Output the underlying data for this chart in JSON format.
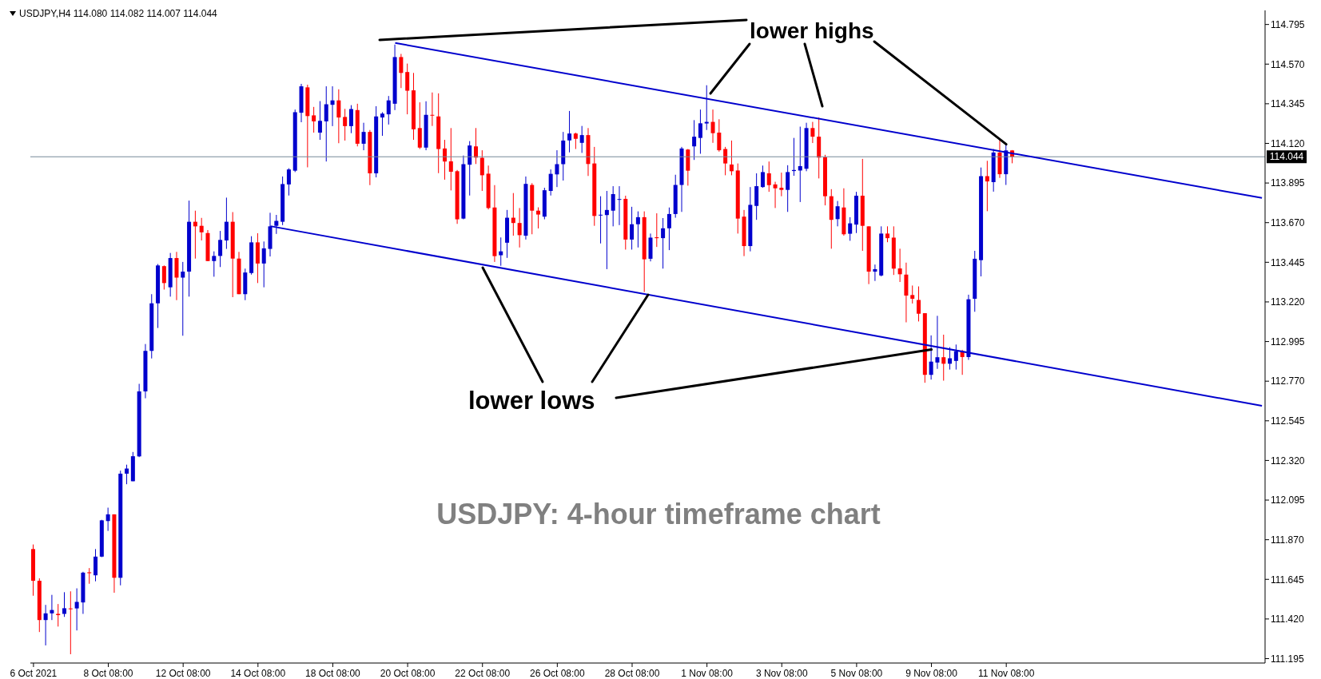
{
  "chart_data": {
    "type": "candlestick",
    "title": "USDJPY,H4  114.080 114.082 114.007 114.044",
    "categories": [
      "6 Oct 2021",
      null,
      null,
      null,
      null,
      null,
      null,
      null,
      null,
      null,
      null,
      null,
      "8 Oct 08:00",
      null,
      null,
      null,
      null,
      null,
      null,
      null,
      null,
      null,
      null,
      null,
      "12 Oct 08:00",
      null,
      null,
      null,
      null,
      null,
      null,
      null,
      null,
      null,
      null,
      null,
      "14 Oct 08:00",
      null,
      null,
      null,
      null,
      null,
      null,
      null,
      null,
      null,
      null,
      null,
      "18 Oct 08:00",
      null,
      null,
      null,
      null,
      null,
      null,
      null,
      null,
      null,
      null,
      null,
      "20 Oct 08:00",
      null,
      null,
      null,
      null,
      null,
      null,
      null,
      null,
      null,
      null,
      null,
      "22 Oct 08:00",
      null,
      null,
      null,
      null,
      null,
      null,
      null,
      null,
      null,
      null,
      null,
      "26 Oct 08:00",
      null,
      null,
      null,
      null,
      null,
      null,
      null,
      null,
      null,
      null,
      null,
      "28 Oct 08:00",
      null,
      null,
      null,
      null,
      null,
      null,
      null,
      null,
      null,
      null,
      null,
      "1 Nov 08:00",
      null,
      null,
      null,
      null,
      null,
      null,
      null,
      null,
      null,
      null,
      null,
      "3 Nov 08:00",
      null,
      null,
      null,
      null,
      null,
      null,
      null,
      null,
      null,
      null,
      null,
      "5 Nov 08:00",
      null,
      null,
      null,
      null,
      null,
      null,
      null,
      null,
      null,
      null,
      null,
      "9 Nov 08:00",
      null,
      null,
      null,
      null,
      null,
      null,
      null,
      null,
      null,
      null,
      null,
      "11 Nov 08:00",
      null,
      null,
      null,
      null,
      null,
      null,
      null,
      null,
      null,
      null,
      null,
      null,
      null,
      null,
      null,
      null,
      null,
      null,
      null,
      null,
      null,
      null,
      null,
      null,
      null,
      null,
      null,
      null,
      null,
      null,
      null,
      null,
      null,
      null,
      null,
      null,
      null,
      null,
      null,
      null,
      null
    ],
    "ohlc": [
      [
        111.817,
        111.843,
        111.552,
        111.637
      ],
      [
        111.637,
        111.651,
        111.346,
        111.414
      ],
      [
        111.414,
        111.5,
        111.27,
        111.452
      ],
      [
        111.452,
        111.557,
        111.414,
        111.471
      ],
      [
        111.449,
        111.505,
        111.377,
        111.442
      ],
      [
        111.449,
        111.572,
        111.432,
        111.481
      ],
      [
        111.48,
        111.577,
        111.22,
        111.478
      ],
      [
        111.48,
        111.594,
        111.355,
        111.517
      ],
      [
        111.514,
        111.688,
        111.449,
        111.683
      ],
      [
        111.685,
        111.709,
        111.62,
        111.68
      ],
      [
        111.668,
        111.817,
        111.634,
        111.774
      ],
      [
        111.774,
        111.983,
        111.771,
        111.98
      ],
      [
        111.976,
        112.052,
        111.92,
        112.014
      ],
      [
        112.014,
        112.014,
        111.569,
        111.654
      ],
      [
        111.654,
        112.262,
        111.611,
        112.245
      ],
      [
        112.245,
        112.296,
        112.185,
        112.274
      ],
      [
        112.202,
        112.368,
        112.202,
        112.344
      ],
      [
        112.343,
        112.755,
        112.339,
        112.712
      ],
      [
        112.712,
        112.981,
        112.673,
        112.942
      ],
      [
        112.942,
        113.264,
        112.899,
        113.212
      ],
      [
        113.212,
        113.435,
        113.072,
        113.427
      ],
      [
        113.423,
        113.427,
        113.29,
        113.327
      ],
      [
        113.303,
        113.498,
        113.25,
        113.469
      ],
      [
        113.469,
        113.504,
        113.23,
        113.358
      ],
      [
        113.358,
        113.447,
        113.028,
        113.392
      ],
      [
        113.392,
        113.795,
        113.25,
        113.675
      ],
      [
        113.675,
        113.738,
        113.466,
        113.649
      ],
      [
        113.652,
        113.697,
        113.569,
        113.615
      ],
      [
        113.611,
        113.628,
        113.452,
        113.452
      ],
      [
        113.452,
        113.507,
        113.363,
        113.481
      ],
      [
        113.481,
        113.623,
        113.418,
        113.572
      ],
      [
        113.569,
        113.812,
        113.521,
        113.675
      ],
      [
        113.675,
        113.73,
        113.247,
        113.466
      ],
      [
        113.466,
        113.504,
        113.264,
        113.264
      ],
      [
        113.264,
        113.409,
        113.23,
        113.387
      ],
      [
        113.384,
        113.593,
        113.375,
        113.558
      ],
      [
        113.558,
        113.61,
        113.327,
        113.438
      ],
      [
        113.438,
        113.563,
        113.303,
        113.524
      ],
      [
        113.521,
        113.726,
        113.478,
        113.649
      ],
      [
        113.652,
        113.714,
        113.606,
        113.68
      ],
      [
        113.675,
        113.932,
        113.656,
        113.889
      ],
      [
        113.887,
        113.979,
        113.824,
        113.972
      ],
      [
        113.965,
        114.312,
        113.957,
        114.297
      ],
      [
        114.294,
        114.458,
        114.24,
        114.444
      ],
      [
        114.438,
        114.453,
        113.984,
        114.275
      ],
      [
        114.279,
        114.327,
        114.181,
        114.245
      ],
      [
        114.181,
        114.36,
        114.14,
        114.248
      ],
      [
        114.245,
        114.444,
        114.017,
        114.342
      ],
      [
        114.339,
        114.444,
        114.218,
        114.364
      ],
      [
        114.364,
        114.427,
        114.121,
        114.267
      ],
      [
        114.27,
        114.316,
        114.136,
        114.218
      ],
      [
        114.218,
        114.337,
        114.178,
        114.315
      ],
      [
        114.309,
        114.345,
        114.103,
        114.118
      ],
      [
        114.118,
        114.237,
        114.081,
        114.185
      ],
      [
        114.185,
        114.196,
        113.883,
        113.95
      ],
      [
        113.95,
        114.331,
        113.927,
        114.273
      ],
      [
        114.267,
        114.297,
        114.163,
        114.289
      ],
      [
        114.285,
        114.389,
        114.227,
        114.364
      ],
      [
        114.345,
        114.681,
        114.309,
        114.61
      ],
      [
        114.61,
        114.628,
        114.434,
        114.52
      ],
      [
        114.525,
        114.573,
        114.285,
        114.419
      ],
      [
        114.421,
        114.52,
        114.14,
        114.2
      ],
      [
        114.207,
        114.353,
        114.088,
        114.096
      ],
      [
        114.096,
        114.359,
        114.081,
        114.282
      ],
      [
        114.282,
        114.409,
        114.219,
        114.279
      ],
      [
        114.273,
        114.404,
        113.951,
        114.088
      ],
      [
        114.091,
        114.14,
        113.914,
        114.017
      ],
      [
        114.018,
        114.207,
        113.853,
        113.959
      ],
      [
        113.962,
        113.969,
        113.663,
        113.689
      ],
      [
        113.693,
        114.051,
        113.689,
        114.002
      ],
      [
        113.999,
        114.133,
        113.824,
        114.108
      ],
      [
        114.103,
        114.207,
        114.003,
        114.039
      ],
      [
        114.038,
        114.081,
        113.85,
        113.939
      ],
      [
        113.948,
        113.994,
        113.745,
        113.753
      ],
      [
        113.756,
        113.883,
        113.447,
        113.48
      ],
      [
        113.485,
        113.586,
        113.425,
        113.507
      ],
      [
        113.556,
        113.742,
        113.47,
        113.698
      ],
      [
        113.698,
        113.838,
        113.596,
        113.668
      ],
      [
        113.668,
        113.753,
        113.529,
        113.599
      ],
      [
        113.596,
        113.932,
        113.574,
        113.89
      ],
      [
        113.884,
        113.894,
        113.604,
        113.738
      ],
      [
        113.738,
        113.757,
        113.637,
        113.716
      ],
      [
        113.704,
        113.868,
        113.689,
        113.854
      ],
      [
        113.85,
        113.972,
        113.824,
        113.947
      ],
      [
        113.944,
        114.081,
        113.872,
        114.002
      ],
      [
        114.002,
        114.185,
        113.909,
        114.136
      ],
      [
        114.137,
        114.304,
        114.069,
        114.176
      ],
      [
        114.176,
        114.181,
        114.088,
        114.146
      ],
      [
        114.123,
        114.219,
        114.066,
        114.167
      ],
      [
        114.167,
        114.207,
        113.935,
        114.003
      ],
      [
        114.006,
        114.1,
        113.652,
        113.708
      ],
      [
        113.711,
        113.82,
        113.552,
        113.715
      ],
      [
        113.713,
        113.85,
        113.406,
        113.742
      ],
      [
        113.738,
        113.877,
        113.649,
        113.832
      ],
      [
        113.8,
        113.877,
        113.656,
        113.804
      ],
      [
        113.805,
        113.823,
        113.517,
        113.574
      ],
      [
        113.574,
        113.76,
        113.517,
        113.661
      ],
      [
        113.661,
        113.734,
        113.529,
        113.701
      ],
      [
        113.701,
        113.734,
        113.276,
        113.462
      ],
      [
        113.465,
        113.608,
        113.45,
        113.585
      ],
      [
        113.587,
        113.723,
        113.532,
        113.582
      ],
      [
        113.582,
        113.696,
        113.409,
        113.638
      ],
      [
        113.638,
        113.756,
        113.514,
        113.719
      ],
      [
        113.719,
        113.942,
        113.698,
        113.884
      ],
      [
        113.884,
        114.1,
        113.731,
        114.091
      ],
      [
        114.085,
        114.088,
        113.88,
        113.965
      ],
      [
        114.103,
        114.252,
        114.026,
        114.158
      ],
      [
        114.151,
        114.312,
        114.061,
        114.234
      ],
      [
        114.233,
        114.45,
        114.196,
        114.242
      ],
      [
        114.242,
        114.312,
        114.123,
        114.178
      ],
      [
        114.181,
        114.257,
        114.073,
        114.081
      ],
      [
        114.088,
        114.1,
        113.939,
        114.006
      ],
      [
        114.0,
        114.136,
        113.939,
        113.962
      ],
      [
        113.966,
        114.006,
        113.608,
        113.693
      ],
      [
        113.704,
        113.742,
        113.48,
        113.537
      ],
      [
        113.537,
        113.872,
        113.507,
        113.771
      ],
      [
        113.765,
        113.95,
        113.686,
        113.877
      ],
      [
        113.872,
        113.994,
        113.868,
        113.957
      ],
      [
        113.95,
        114.017,
        113.845,
        113.883
      ],
      [
        113.887,
        113.902,
        113.753,
        113.865
      ],
      [
        113.868,
        113.954,
        113.82,
        113.856
      ],
      [
        113.856,
        113.996,
        113.731,
        113.957
      ],
      [
        113.963,
        114.151,
        113.936,
        113.969
      ],
      [
        113.966,
        114.215,
        113.787,
        113.991
      ],
      [
        113.976,
        114.237,
        113.962,
        114.207
      ],
      [
        114.207,
        114.242,
        114.122,
        114.158
      ],
      [
        114.158,
        114.267,
        113.921,
        114.039
      ],
      [
        114.041,
        114.055,
        113.768,
        113.82
      ],
      [
        113.82,
        113.86,
        113.522,
        113.686
      ],
      [
        113.69,
        113.793,
        113.649,
        113.763
      ],
      [
        113.756,
        113.865,
        113.596,
        113.604
      ],
      [
        113.607,
        113.701,
        113.567,
        113.666
      ],
      [
        113.659,
        113.845,
        113.611,
        113.823
      ],
      [
        113.823,
        114.032,
        113.51,
        113.652
      ],
      [
        113.649,
        113.649,
        113.321,
        113.392
      ],
      [
        113.392,
        113.432,
        113.339,
        113.406
      ],
      [
        113.37,
        113.649,
        113.365,
        113.608
      ],
      [
        113.608,
        113.649,
        113.559,
        113.582
      ],
      [
        113.585,
        113.649,
        113.373,
        113.409
      ],
      [
        113.41,
        113.522,
        113.333,
        113.377
      ],
      [
        113.375,
        113.443,
        113.104,
        113.256
      ],
      [
        113.259,
        113.313,
        113.211,
        113.238
      ],
      [
        113.231,
        113.308,
        113.109,
        113.153
      ],
      [
        113.156,
        113.156,
        112.761,
        112.806
      ],
      [
        112.806,
        113.03,
        112.779,
        112.881
      ],
      [
        112.876,
        113.141,
        112.84,
        112.906
      ],
      [
        112.906,
        113.034,
        112.773,
        112.869
      ],
      [
        112.869,
        112.963,
        112.836,
        112.9
      ],
      [
        112.885,
        112.978,
        112.836,
        112.94
      ],
      [
        112.94,
        112.948,
        112.806,
        112.907
      ],
      [
        112.907,
        113.261,
        112.891,
        113.235
      ],
      [
        113.238,
        113.51,
        113.164,
        113.465
      ],
      [
        113.457,
        113.983,
        113.365,
        113.934
      ],
      [
        113.934,
        114.021,
        113.735,
        113.904
      ],
      [
        113.9,
        114.088,
        113.846,
        114.068
      ],
      [
        114.068,
        114.14,
        113.924,
        113.945
      ],
      [
        113.945,
        114.115,
        113.884,
        114.08
      ],
      [
        114.08,
        114.082,
        114.007,
        114.044
      ],
      null,
      null,
      null,
      null,
      null,
      null,
      null,
      null,
      null,
      null,
      null,
      null,
      null,
      null,
      null,
      null,
      null,
      null,
      null,
      null,
      null,
      null,
      null,
      null,
      null,
      null,
      null,
      null,
      null,
      null,
      null,
      null,
      null,
      null,
      null,
      null,
      null,
      null,
      null,
      null
    ],
    "colors": [
      "#ff0000",
      "#ff0000",
      "#0000cd",
      "#0000cd",
      "#ff0000",
      "#0000cd",
      "#ff0000",
      "#0000cd",
      "#0000cd",
      "#ff0000",
      "#0000cd",
      "#0000cd",
      "#0000cd",
      "#ff0000",
      "#0000cd",
      "#0000cd",
      "#0000cd",
      "#0000cd",
      "#0000cd",
      "#0000cd",
      "#0000cd",
      "#ff0000",
      "#0000cd",
      "#ff0000",
      "#0000cd",
      "#0000cd",
      "#ff0000",
      "#ff0000",
      "#ff0000",
      "#0000cd",
      "#0000cd",
      "#0000cd",
      "#ff0000",
      "#ff0000",
      "#0000cd",
      "#0000cd",
      "#ff0000",
      "#0000cd",
      "#0000cd",
      "#0000cd",
      "#0000cd",
      "#0000cd",
      "#0000cd",
      "#0000cd",
      "#ff0000",
      "#ff0000",
      "#0000cd",
      "#0000cd",
      "#0000cd",
      "#ff0000",
      "#ff0000",
      "#0000cd",
      "#ff0000",
      "#0000cd",
      "#ff0000",
      "#0000cd",
      "#0000cd",
      "#0000cd",
      "#0000cd",
      "#ff0000",
      "#ff0000",
      "#ff0000",
      "#ff0000",
      "#0000cd",
      "#ff0000",
      "#ff0000",
      "#ff0000",
      "#ff0000",
      "#ff0000",
      "#0000cd",
      "#0000cd",
      "#ff0000",
      "#ff0000",
      "#ff0000",
      "#ff0000",
      "#0000cd",
      "#0000cd",
      "#ff0000",
      "#ff0000",
      "#0000cd",
      "#ff0000",
      "#ff0000",
      "#0000cd",
      "#0000cd",
      "#0000cd",
      "#0000cd",
      "#0000cd",
      "#ff0000",
      "#0000cd",
      "#ff0000",
      "#ff0000",
      "#0000cd",
      "#0000cd",
      "#0000cd",
      "#0000cd",
      "#ff0000",
      "#0000cd",
      "#0000cd",
      "#ff0000",
      "#0000cd",
      "#ff0000",
      "#0000cd",
      "#0000cd",
      "#0000cd",
      "#0000cd",
      "#ff0000",
      "#0000cd",
      "#0000cd",
      "#0000cd",
      "#ff0000",
      "#ff0000",
      "#ff0000",
      "#ff0000",
      "#ff0000",
      "#ff0000",
      "#0000cd",
      "#0000cd",
      "#0000cd",
      "#ff0000",
      "#ff0000",
      "#ff0000",
      "#0000cd",
      "#0000cd",
      "#0000cd",
      "#0000cd",
      "#ff0000",
      "#ff0000",
      "#ff0000",
      "#ff0000",
      "#0000cd",
      "#ff0000",
      "#0000cd",
      "#0000cd",
      "#ff0000",
      "#ff0000",
      "#0000cd",
      "#0000cd",
      "#ff0000",
      "#ff0000",
      "#ff0000",
      "#ff0000",
      "#ff0000",
      "#ff0000",
      "#ff0000",
      "#0000cd",
      "#0000cd",
      "#ff0000",
      "#0000cd",
      "#0000cd",
      "#ff0000",
      "#0000cd",
      "#0000cd",
      "#0000cd",
      "#ff0000",
      "#0000cd",
      "#ff0000",
      "#0000cd",
      "#ff0000",
      null,
      null,
      null,
      null,
      null,
      null,
      null,
      null,
      null,
      null,
      null,
      null,
      null,
      null,
      null,
      null,
      null,
      null,
      null,
      null,
      null,
      null,
      null,
      null,
      null,
      null,
      null,
      null,
      null,
      null,
      null,
      null,
      null,
      null,
      null,
      null,
      null,
      null,
      null,
      null
    ],
    "series": [
      {
        "type": "line",
        "color": "#0000cd",
        "values": [
          null,
          null,
          null,
          null,
          null,
          null,
          null,
          null,
          null,
          null,
          null,
          null,
          null,
          null,
          null,
          null,
          null,
          null,
          null,
          null,
          null,
          null,
          null,
          null,
          null,
          null,
          null,
          null,
          null,
          null,
          null,
          null,
          null,
          null,
          null,
          null,
          null,
          null,
          null,
          null,
          null,
          null,
          null,
          null,
          null,
          null,
          null,
          null,
          null,
          null,
          null,
          null,
          null,
          null,
          null,
          null,
          null,
          null,
          114.69,
          null,
          null,
          null,
          null,
          null,
          null,
          null,
          null,
          null,
          null,
          null,
          null,
          null,
          null,
          null,
          null,
          null,
          null,
          null,
          null,
          null,
          null,
          null,
          null,
          null,
          null,
          null,
          null,
          null,
          null,
          null,
          null,
          null,
          null,
          null,
          null,
          null,
          null,
          null,
          null,
          null,
          null,
          null,
          null,
          null,
          null,
          null,
          null,
          null,
          null,
          null,
          null,
          null,
          null,
          null,
          null,
          null,
          null,
          null,
          null,
          null,
          null,
          null,
          null,
          null,
          null,
          null,
          null,
          null,
          null,
          null,
          null,
          null,
          null,
          null,
          null,
          null,
          null,
          null,
          null,
          null,
          null,
          null,
          null,
          null,
          null,
          null,
          null,
          null,
          null,
          null,
          null,
          null,
          null,
          null,
          null,
          null,
          null,
          null,
          null,
          null,
          null,
          null,
          null,
          null,
          null,
          null,
          null,
          null,
          null,
          null,
          null,
          null,
          null,
          null,
          null,
          null,
          null,
          null,
          null,
          null,
          null,
          null,
          null,
          null,
          null,
          null,
          null,
          null,
          null,
          null,
          null,
          null,
          null,
          null,
          null,
          null,
          null,
          113.81
        ]
      },
      {
        "type": "line",
        "color": "#0000cd",
        "values": [
          null,
          null,
          null,
          null,
          null,
          null,
          null,
          null,
          null,
          null,
          null,
          null,
          null,
          null,
          null,
          null,
          null,
          null,
          null,
          null,
          null,
          null,
          null,
          null,
          null,
          null,
          null,
          null,
          null,
          null,
          null,
          null,
          null,
          null,
          null,
          null,
          null,
          null,
          113.65,
          null,
          null,
          null,
          null,
          null,
          null,
          null,
          null,
          null,
          null,
          null,
          null,
          null,
          null,
          null,
          null,
          null,
          null,
          null,
          null,
          null,
          null,
          null,
          null,
          null,
          null,
          null,
          null,
          null,
          null,
          null,
          null,
          null,
          null,
          null,
          null,
          null,
          null,
          null,
          null,
          null,
          null,
          null,
          null,
          null,
          null,
          null,
          null,
          null,
          null,
          null,
          null,
          null,
          null,
          null,
          null,
          null,
          null,
          null,
          null,
          null,
          null,
          null,
          null,
          null,
          null,
          null,
          null,
          null,
          null,
          null,
          null,
          null,
          null,
          null,
          null,
          null,
          null,
          null,
          null,
          null,
          null,
          null,
          null,
          null,
          null,
          null,
          null,
          null,
          null,
          null,
          null,
          null,
          null,
          null,
          null,
          null,
          null,
          null,
          null,
          null,
          null,
          null,
          null,
          null,
          null,
          null,
          null,
          null,
          null,
          null,
          null,
          null,
          null,
          null,
          null,
          null,
          null,
          null,
          null,
          null,
          null,
          null,
          null,
          null,
          null,
          null,
          null,
          null,
          null,
          null,
          null,
          null,
          null,
          null,
          null,
          null,
          null,
          null,
          null,
          null,
          null,
          null,
          null,
          null,
          null,
          null,
          null,
          null,
          null,
          null,
          null,
          null,
          null,
          null,
          null,
          null,
          null,
          112.63
        ]
      }
    ],
    "ylim": [
      111.17,
      114.875
    ],
    "yticks": [
      111.195,
      {
        "value": 111.42,
        "label": "111.420"
      },
      111.645,
      {
        "value": 111.87,
        "label": "111.870"
      },
      112.095,
      {
        "value": 112.32,
        "label": "112.320"
      },
      112.545,
      {
        "value": 112.77,
        "label": "112.770"
      },
      112.995,
      {
        "value": 113.22,
        "label": "113.220"
      },
      113.445,
      {
        "value": 113.67,
        "label": "113.670"
      },
      113.895,
      {
        "value": 114.12,
        "label": "114.120"
      },
      114.345,
      {
        "value": 114.57,
        "label": "114.570"
      },
      114.795
    ],
    "ref_lines": [
      {
        "axis": "y",
        "value": 114.044,
        "label": "114.044",
        "color": "#778899"
      }
    ],
    "annotations": [
      {
        "text": "lower highs",
        "x": "11 Nov 08:00",
        "y": 114.115
      },
      {
        "text": "lower lows",
        "x": "9 Nov 08:00",
        "y": 112.95
      },
      "USDJPY: 4-hour timeframe chart"
    ]
  }
}
